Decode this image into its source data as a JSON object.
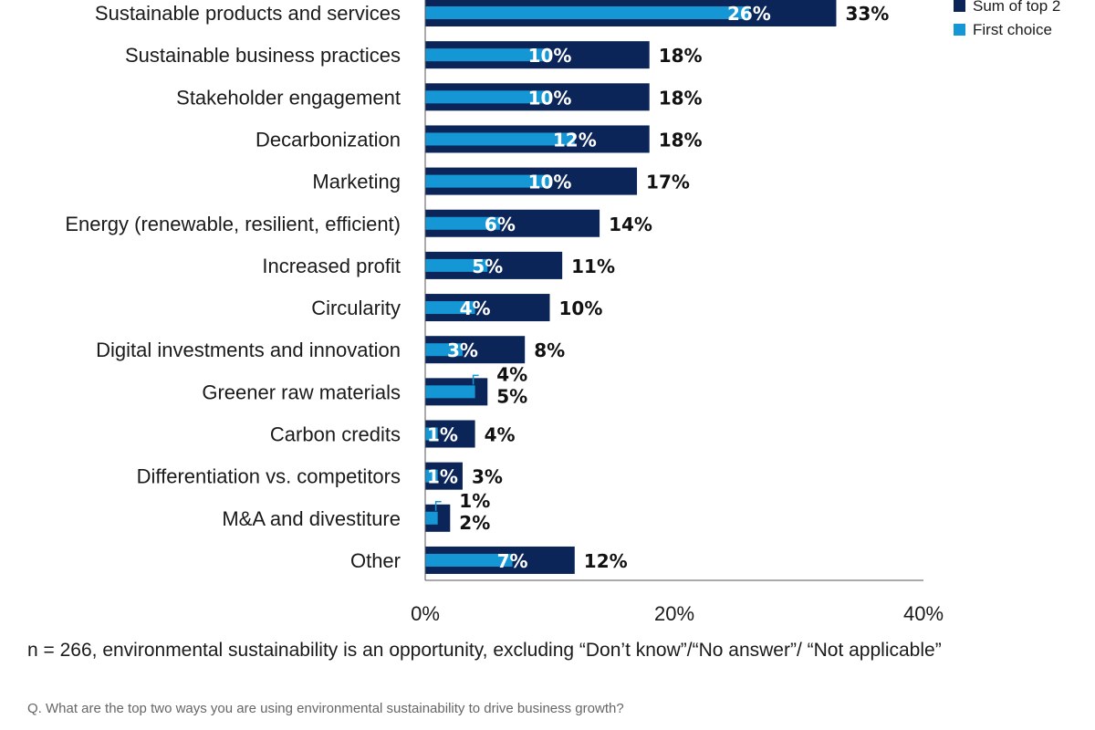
{
  "chart_data": {
    "type": "bar",
    "orientation": "horizontal",
    "categories": [
      "Sustainable products and services",
      "Sustainable business practices",
      "Stakeholder engagement",
      "Decarbonization",
      "Marketing",
      "Energy (renewable, resilient, efficient)",
      "Increased profit",
      "Circularity",
      "Digital investments and innovation",
      "Greener raw materials",
      "Carbon credits",
      "Differentiation vs. competitors",
      "M&A and divestiture",
      "Other"
    ],
    "series": [
      {
        "name": "Sum of top 2",
        "color": "#0b2559",
        "values": [
          33,
          18,
          18,
          18,
          17,
          14,
          11,
          10,
          8,
          5,
          4,
          3,
          2,
          12
        ]
      },
      {
        "name": "First choice",
        "color": "#1597d6",
        "values": [
          26,
          10,
          10,
          12,
          10,
          6,
          5,
          4,
          3,
          4,
          1,
          1,
          1,
          7
        ]
      }
    ],
    "value_labels": {
      "total": [
        "33%",
        "18%",
        "18%",
        "18%",
        "17%",
        "14%",
        "11%",
        "10%",
        "8%",
        "5%",
        "4%",
        "3%",
        "2%",
        "12%"
      ],
      "first": [
        "26%",
        "10%",
        "10%",
        "12%",
        "10%",
        "6%",
        "5%",
        "4%",
        "3%",
        "4%",
        "1%",
        "1%",
        "1%",
        "7%"
      ]
    },
    "xlim": [
      0,
      40
    ],
    "xticks": [
      0,
      20,
      40
    ],
    "xtick_labels": [
      "0%",
      "20%",
      "40%"
    ],
    "grid": false,
    "legend_position": "top-right"
  },
  "footnote": "n = 266, environmental sustainability is an opportunity, excluding “Don’t know”/“No answer”/ “Not applicable”",
  "question": "Q. What are the top two ways you are using environmental sustainability to drive business growth?"
}
